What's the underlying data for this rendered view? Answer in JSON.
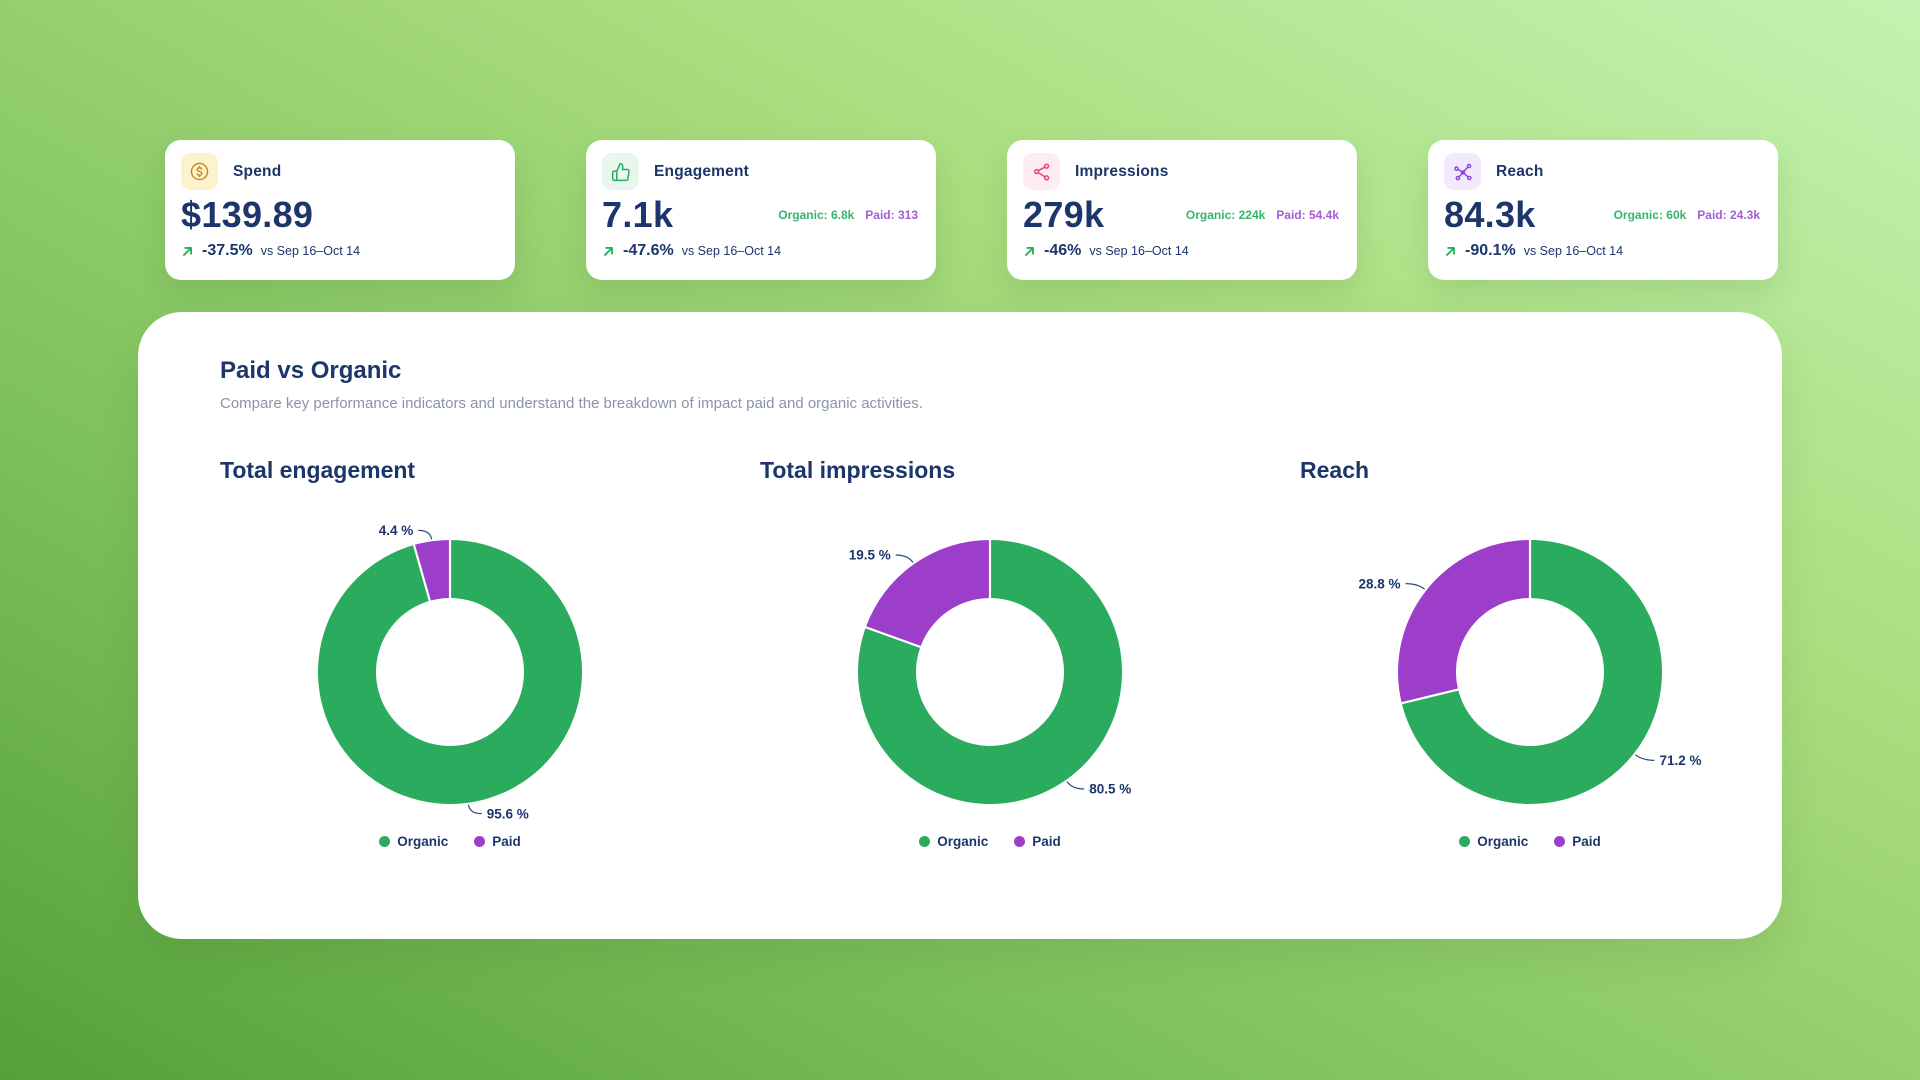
{
  "colors": {
    "navy_text": "#1c356b",
    "organic_green": "#2bab5e",
    "paid_purple": "#9c3ec9",
    "organic_text": "#36b46d",
    "paid_text": "#a85ad8",
    "subtitle_gray": "#8a94a6",
    "background_top_right": "#c2f3b2",
    "background_bottom_left": "#54a139"
  },
  "kpi_cards": [
    {
      "id": "spend",
      "label": "Spend",
      "value": "$139.89",
      "trend": "-37.5%",
      "trend_period": "vs Sep 16–Oct 14",
      "icon": "dollar-coin-icon",
      "icon_bg": "#fcf3cd",
      "icon_color": "#c4861c"
    },
    {
      "id": "engagement",
      "label": "Engagement",
      "value": "7.1k",
      "organic": "Organic: 6.8k",
      "paid": "Paid: 313",
      "trend": "-47.6%",
      "trend_period": "vs Sep 16–Oct 14",
      "icon": "thumbs-up-icon",
      "icon_bg": "#e9f6ed",
      "icon_color": "#2bab5e"
    },
    {
      "id": "impressions",
      "label": "Impressions",
      "value": "279k",
      "organic": "Organic: 224k",
      "paid": "Paid: 54.4k",
      "trend": "-46%",
      "trend_period": "vs Sep 16–Oct 14",
      "icon": "scatter-dots-icon",
      "icon_bg": "#fdedf2",
      "icon_color": "#e8476b"
    },
    {
      "id": "reach",
      "label": "Reach",
      "value": "84.3k",
      "organic": "Organic: 60k",
      "paid": "Paid: 24.3k",
      "trend": "-90.1%",
      "trend_period": "vs Sep 16–Oct 14",
      "icon": "network-icon",
      "icon_bg": "#f2eafc",
      "icon_color": "#8b46d6"
    }
  ],
  "panel": {
    "title": "Paid vs Organic",
    "subtitle": "Compare key performance indicators and understand the breakdown of impact paid and organic activities."
  },
  "chart_data": [
    {
      "type": "pie",
      "title": "Total engagement",
      "unit": "%",
      "legend_position": "bottom",
      "series": [
        {
          "name": "Organic",
          "value": 95.6,
          "label": "95.6 %"
        },
        {
          "name": "Paid",
          "value": 4.4,
          "label": "4.4 %"
        }
      ],
      "colors": {
        "Organic": "#2bab5e",
        "Paid": "#9c3ec9"
      }
    },
    {
      "type": "pie",
      "title": "Total impressions",
      "unit": "%",
      "legend_position": "bottom",
      "series": [
        {
          "name": "Organic",
          "value": 80.5,
          "label": "80.5 %"
        },
        {
          "name": "Paid",
          "value": 19.5,
          "label": "19.5 %"
        }
      ],
      "colors": {
        "Organic": "#2bab5e",
        "Paid": "#9c3ec9"
      }
    },
    {
      "type": "pie",
      "title": "Reach",
      "unit": "%",
      "legend_position": "bottom",
      "series": [
        {
          "name": "Organic",
          "value": 71.2,
          "label": "71.2 %"
        },
        {
          "name": "Paid",
          "value": 28.8,
          "label": "28.8 %"
        }
      ],
      "colors": {
        "Organic": "#2bab5e",
        "Paid": "#9c3ec9"
      }
    }
  ]
}
